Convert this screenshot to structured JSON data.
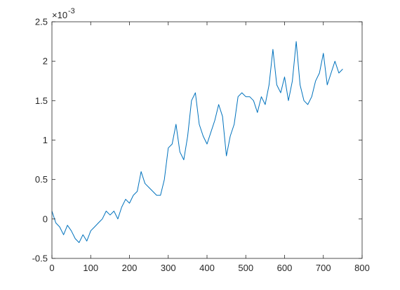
{
  "chart_data": {
    "type": "line",
    "title": "",
    "xlabel": "",
    "ylabel": "",
    "y_multiplier_label": "×10",
    "y_multiplier_exponent": "-3",
    "xlim": [
      0,
      800
    ],
    "ylim": [
      -0.5,
      2.5
    ],
    "x_ticks": [
      0,
      100,
      200,
      300,
      400,
      500,
      600,
      700,
      800
    ],
    "y_ticks": [
      -0.5,
      0,
      0.5,
      1,
      1.5,
      2,
      2.5
    ],
    "y_tick_labels": [
      "-0.5",
      "0",
      "0.5",
      "1",
      "1.5",
      "2",
      "2.5"
    ],
    "grid": false,
    "line_color": "#0072BD",
    "axis_color": "#262626",
    "series": [
      {
        "x": [
          0,
          10,
          20,
          30,
          40,
          50,
          60,
          70,
          80,
          90,
          100,
          110,
          120,
          130,
          140,
          150,
          160,
          170,
          180,
          190,
          200,
          210,
          220,
          230,
          240,
          250,
          260,
          270,
          280,
          290,
          300,
          310,
          320,
          330,
          340,
          350,
          360,
          370,
          380,
          390,
          400,
          410,
          420,
          430,
          440,
          450,
          460,
          470,
          480,
          490,
          500,
          510,
          520,
          530,
          540,
          550,
          560,
          570,
          580,
          590,
          600,
          610,
          620,
          630,
          640,
          650,
          660,
          670,
          680,
          690,
          700,
          710,
          720,
          730,
          740,
          750
        ],
        "values": [
          0.1,
          -0.05,
          -0.1,
          -0.2,
          -0.08,
          -0.15,
          -0.25,
          -0.3,
          -0.2,
          -0.28,
          -0.15,
          -0.1,
          -0.05,
          0.0,
          0.1,
          0.05,
          0.1,
          0.0,
          0.15,
          0.25,
          0.2,
          0.3,
          0.35,
          0.6,
          0.45,
          0.4,
          0.35,
          0.3,
          0.3,
          0.5,
          0.9,
          0.95,
          1.2,
          0.85,
          0.75,
          1.05,
          1.5,
          1.6,
          1.2,
          1.05,
          0.95,
          1.1,
          1.25,
          1.45,
          1.3,
          0.8,
          1.05,
          1.2,
          1.55,
          1.6,
          1.55,
          1.55,
          1.5,
          1.35,
          1.55,
          1.45,
          1.7,
          2.15,
          1.7,
          1.6,
          1.8,
          1.5,
          1.75,
          2.25,
          1.7,
          1.5,
          1.45,
          1.55,
          1.75,
          1.85,
          2.1,
          1.7,
          1.85,
          2.0,
          1.85,
          1.9
        ]
      }
    ]
  }
}
